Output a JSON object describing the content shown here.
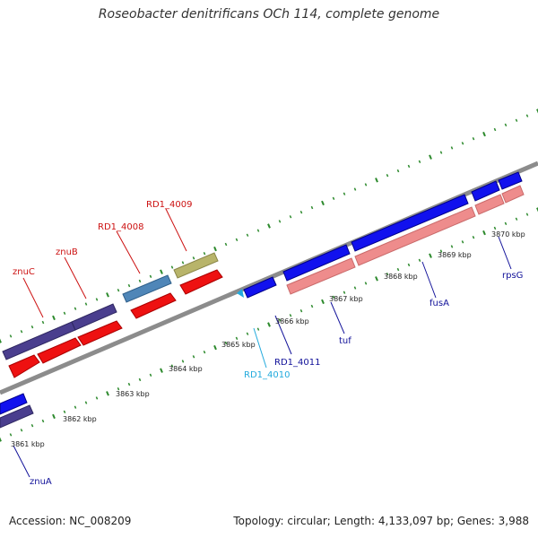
{
  "title": "Roseobacter denitrificans OCh 114, complete genome",
  "footer": {
    "accession": "Accession: NC_008209",
    "stats": "Topology: circular; Length: 4,133,097 bp; Genes: 3,988"
  },
  "ticks": [
    "3861 kbp",
    "3862 kbp",
    "3863 kbp",
    "3864 kbp",
    "3865 kbp",
    "3866 kbp",
    "3867 kbp",
    "3868 kbp",
    "3869 kbp",
    "3870 kbp"
  ],
  "gene_labels": [
    "znuC",
    "znuB",
    "RD1_4008",
    "RD1_4009",
    "RD1_4011",
    "RD1_4010",
    "tuf",
    "fusA",
    "rpsG",
    "znuA"
  ],
  "colors": {
    "backbone": "#8c8c8c",
    "dots": "#2d8a2d",
    "cds_red": "#ee1111",
    "cds_blue": "#1111ee",
    "cds_purple": "#4a3e8e",
    "cds_steel": "#4f86b8",
    "cds_khaki": "#b8b46a",
    "cds_salmon": "#ee8c8c",
    "label_red": "#cc1111",
    "label_navy": "#111199",
    "label_cyan": "#22aadd"
  }
}
